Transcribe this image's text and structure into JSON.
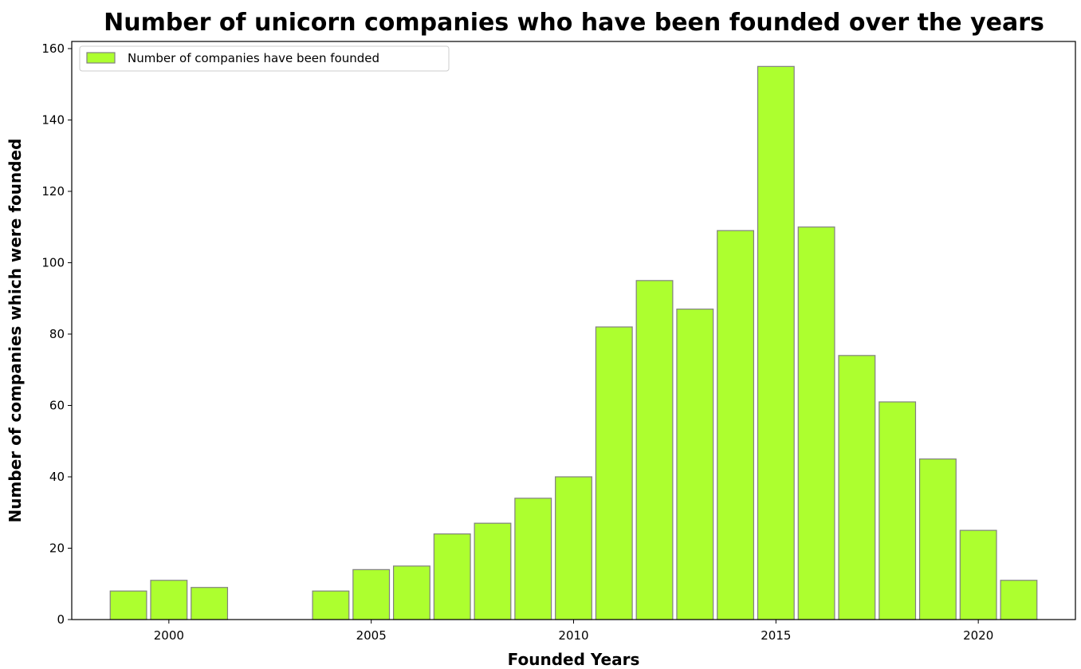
{
  "chart_data": {
    "type": "bar",
    "title": "Number of unicorn companies who have been founded over the years",
    "xlabel": "Founded Years",
    "ylabel": "Number of companies which were founded",
    "x": [
      1999,
      2000,
      2001,
      2004,
      2005,
      2006,
      2007,
      2008,
      2009,
      2010,
      2011,
      2012,
      2013,
      2014,
      2015,
      2016,
      2017,
      2018,
      2019,
      2020,
      2021
    ],
    "series": [
      {
        "name": "Number of companies have been founded",
        "values": [
          8,
          11,
          9,
          8,
          14,
          15,
          24,
          27,
          34,
          40,
          82,
          95,
          87,
          109,
          155,
          110,
          74,
          61,
          45,
          25,
          11
        ]
      }
    ],
    "xlim": [
      1997.6,
      2022.4
    ],
    "ylim": [
      0,
      162
    ],
    "x_ticks": [
      2000,
      2005,
      2010,
      2015,
      2020
    ],
    "y_ticks": [
      0,
      20,
      40,
      60,
      80,
      100,
      120,
      140,
      160
    ],
    "grid": false,
    "legend_position": "top-left",
    "colors": {
      "bar_fill": "#adff2f",
      "bar_edge": "#808080"
    }
  }
}
